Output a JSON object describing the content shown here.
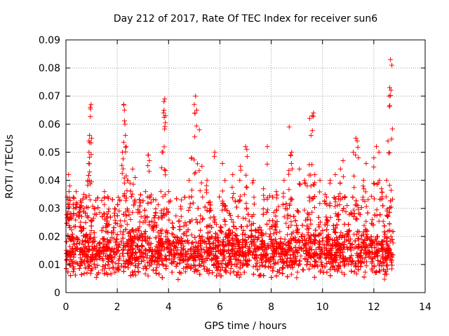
{
  "chart_data": {
    "type": "scatter",
    "title": "Day 212 of 2017, Rate Of TEC Index for receiver sun6",
    "xlabel": "GPS time / hours",
    "ylabel": "ROTI / TECUs",
    "xlim": [
      0,
      14
    ],
    "ylim": [
      0,
      0.09
    ],
    "x_ticks": [
      0,
      2,
      4,
      6,
      8,
      10,
      12,
      14
    ],
    "y_ticks": [
      0,
      0.01,
      0.02,
      0.03,
      0.04,
      0.05,
      0.06,
      0.07,
      0.08,
      0.09
    ],
    "x_tick_labels": [
      "0",
      "2",
      "4",
      "6",
      "8",
      "10",
      "12",
      "14"
    ],
    "y_tick_labels": [
      "0",
      "0.01",
      "0.02",
      "0.03",
      "0.04",
      "0.05",
      "0.06",
      "0.07",
      "0.08",
      "0.09"
    ],
    "grid": true,
    "marker": "+",
    "marker_color": "#ff0000",
    "x_range_data": [
      0,
      12.75
    ],
    "series": [
      {
        "name": "ROTI",
        "points": [
          [
            0.05,
            0.034
          ],
          [
            0.08,
            0.033
          ],
          [
            0.1,
            0.042
          ],
          [
            0.12,
            0.036
          ],
          [
            0.15,
            0.038
          ],
          [
            0.2,
            0.028
          ],
          [
            0.3,
            0.03
          ],
          [
            0.4,
            0.036
          ],
          [
            0.5,
            0.028
          ],
          [
            0.6,
            0.032
          ],
          [
            0.7,
            0.035
          ],
          [
            0.8,
            0.034
          ],
          [
            0.85,
            0.04
          ],
          [
            0.88,
            0.046
          ],
          [
            0.9,
            0.05
          ],
          [
            0.92,
            0.056
          ],
          [
            0.95,
            0.066
          ],
          [
            0.98,
            0.067
          ],
          [
            1.0,
            0.055
          ],
          [
            1.1,
            0.03
          ],
          [
            1.5,
            0.036
          ],
          [
            1.6,
            0.028
          ],
          [
            1.9,
            0.03
          ],
          [
            2.1,
            0.033
          ],
          [
            2.2,
            0.05
          ],
          [
            2.25,
            0.067
          ],
          [
            2.28,
            0.065
          ],
          [
            2.3,
            0.06
          ],
          [
            2.32,
            0.056
          ],
          [
            2.35,
            0.052
          ],
          [
            2.4,
            0.04
          ],
          [
            2.5,
            0.039
          ],
          [
            2.6,
            0.044
          ],
          [
            2.7,
            0.041
          ],
          [
            2.9,
            0.032
          ],
          [
            3.1,
            0.036
          ],
          [
            3.2,
            0.049
          ],
          [
            3.25,
            0.047
          ],
          [
            3.5,
            0.033
          ],
          [
            3.7,
            0.036
          ],
          [
            3.75,
            0.05
          ],
          [
            3.8,
            0.064
          ],
          [
            3.82,
            0.068
          ],
          [
            3.85,
            0.069
          ],
          [
            3.88,
            0.063
          ],
          [
            4.0,
            0.036
          ],
          [
            4.5,
            0.033
          ],
          [
            4.8,
            0.04
          ],
          [
            4.9,
            0.048
          ],
          [
            5.0,
            0.067
          ],
          [
            5.05,
            0.07
          ],
          [
            5.1,
            0.065
          ],
          [
            5.2,
            0.058
          ],
          [
            5.3,
            0.045
          ],
          [
            5.5,
            0.04
          ],
          [
            5.8,
            0.05
          ],
          [
            6.1,
            0.046
          ],
          [
            6.2,
            0.04
          ],
          [
            6.5,
            0.042
          ],
          [
            6.8,
            0.045
          ],
          [
            7.0,
            0.052
          ],
          [
            7.05,
            0.051
          ],
          [
            7.3,
            0.04
          ],
          [
            7.7,
            0.037
          ],
          [
            7.85,
            0.052
          ],
          [
            8.2,
            0.036
          ],
          [
            8.5,
            0.04
          ],
          [
            8.7,
            0.059
          ],
          [
            8.75,
            0.049
          ],
          [
            8.8,
            0.05
          ],
          [
            9.1,
            0.044
          ],
          [
            9.3,
            0.04
          ],
          [
            9.4,
            0.038
          ],
          [
            9.5,
            0.062
          ],
          [
            9.55,
            0.056
          ],
          [
            9.6,
            0.063
          ],
          [
            9.65,
            0.064
          ],
          [
            9.7,
            0.042
          ],
          [
            9.9,
            0.04
          ],
          [
            10.1,
            0.035
          ],
          [
            10.3,
            0.04
          ],
          [
            10.5,
            0.042
          ],
          [
            10.7,
            0.044
          ],
          [
            10.8,
            0.047
          ],
          [
            11.2,
            0.05
          ],
          [
            11.3,
            0.055
          ],
          [
            11.35,
            0.054
          ],
          [
            11.4,
            0.048
          ],
          [
            11.6,
            0.04
          ],
          [
            11.7,
            0.046
          ],
          [
            12.0,
            0.048
          ],
          [
            12.1,
            0.052
          ],
          [
            12.2,
            0.05
          ],
          [
            12.3,
            0.037
          ],
          [
            12.5,
            0.04
          ],
          [
            12.55,
            0.054
          ],
          [
            12.6,
            0.07
          ],
          [
            12.62,
            0.073
          ],
          [
            12.65,
            0.083
          ],
          [
            12.7,
            0.081
          ]
        ],
        "dense_band": {
          "x_start": 0,
          "x_end": 12.75,
          "typical_min": 0.006,
          "typical_max": 0.027,
          "typical_center": 0.015
        }
      }
    ]
  }
}
